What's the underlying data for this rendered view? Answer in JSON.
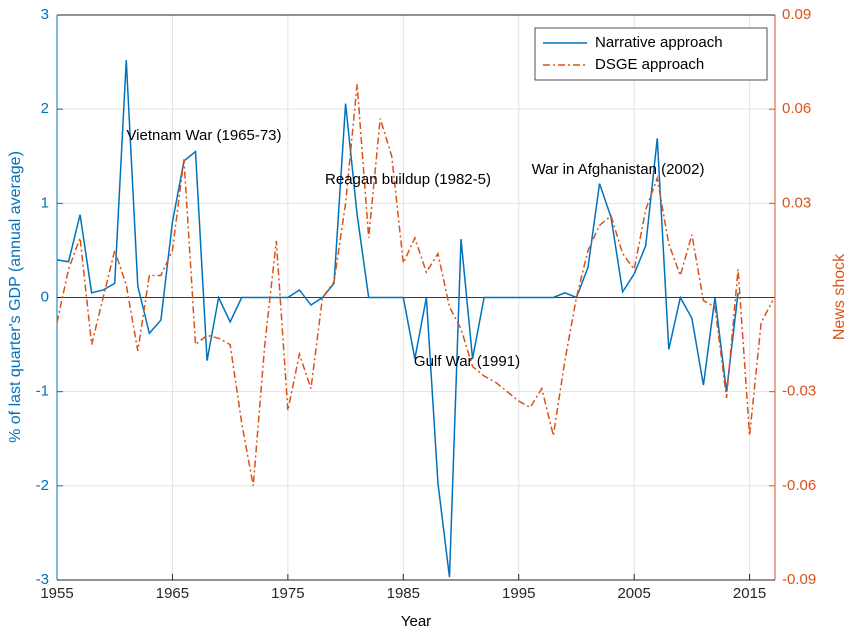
{
  "chart_data": {
    "type": "line",
    "x_label": "Year",
    "y_label": "% of last quarter's GDP (annual average)",
    "y2_label": "News shock",
    "xlim": [
      1955,
      2017.2
    ],
    "xticks": [
      1955,
      1965,
      1975,
      1985,
      1995,
      2005,
      2015
    ],
    "ylim": [
      -3,
      3
    ],
    "yticks": [
      -3,
      -2,
      -1,
      0,
      1,
      2,
      3
    ],
    "y2lim": [
      -0.09,
      0.09
    ],
    "y2ticks": [
      -0.09,
      -0.06,
      -0.03,
      0.03,
      0.06,
      0.09
    ],
    "grid": true,
    "legend": "upper-right",
    "x": [
      1955,
      1956,
      1957,
      1958,
      1959,
      1960,
      1961,
      1962,
      1963,
      1964,
      1965,
      1966,
      1967,
      1968,
      1969,
      1970,
      1971,
      1972,
      1973,
      1974,
      1975,
      1976,
      1977,
      1978,
      1979,
      1980,
      1981,
      1982,
      1983,
      1984,
      1985,
      1986,
      1987,
      1988,
      1989,
      1990,
      1991,
      1992,
      1993,
      1994,
      1995,
      1996,
      1997,
      1998,
      1999,
      2000,
      2001,
      2002,
      2003,
      2004,
      2005,
      2006,
      2007,
      2008,
      2009,
      2010,
      2011,
      2012,
      2013,
      2014,
      2015,
      2016,
      2017
    ],
    "series": [
      {
        "name": "Narrative approach",
        "color": "#0072BD",
        "dash": "solid",
        "axis": "y",
        "values": [
          0.4,
          0.38,
          0.88,
          0.05,
          0.08,
          0.15,
          2.52,
          0.12,
          -0.38,
          -0.24,
          0.8,
          1.45,
          1.55,
          -0.67,
          0,
          -0.26,
          0,
          0,
          0,
          0,
          0,
          0.08,
          -0.08,
          0,
          0.15,
          2.06,
          0.88,
          0,
          0,
          0,
          0,
          -0.65,
          0,
          -1.97,
          -2.97,
          0.62,
          -0.65,
          0,
          0,
          0,
          0,
          0,
          0,
          0,
          0.05,
          0,
          0.32,
          1.21,
          0.85,
          0.06,
          0.25,
          0.55,
          1.69,
          -0.55,
          0,
          -0.22,
          -0.93,
          0,
          -1.0,
          0.05,
          null,
          null,
          null
        ]
      },
      {
        "name": "DSGE approach",
        "color": "#D95319",
        "dash": "dashdot",
        "axis": "y2",
        "values": [
          -0.008,
          0.009,
          0.019,
          -0.015,
          0.0,
          0.015,
          0.004,
          -0.017,
          0.007,
          0.007,
          0.015,
          0.044,
          -0.015,
          -0.012,
          -0.013,
          -0.015,
          -0.04,
          -0.06,
          -0.015,
          0.018,
          -0.036,
          -0.018,
          -0.029,
          0.0,
          0.005,
          0.03,
          0.068,
          0.019,
          0.057,
          0.045,
          0.011,
          0.019,
          0.008,
          0.014,
          -0.003,
          -0.01,
          -0.022,
          -0.025,
          -0.027,
          -0.03,
          -0.033,
          -0.035,
          -0.029,
          -0.044,
          -0.02,
          0.0,
          0.015,
          0.023,
          0.026,
          0.014,
          0.009,
          0.028,
          0.038,
          0.017,
          0.007,
          0.02,
          -0.001,
          -0.003,
          -0.032,
          0.009,
          -0.044,
          -0.008,
          -0.001
        ]
      }
    ],
    "annotations": [
      "Vietnam War (1965-73)",
      "Reagan buildup (1982-5)",
      "Gulf War (1991)",
      "War in Afghanistan (2002)"
    ]
  }
}
